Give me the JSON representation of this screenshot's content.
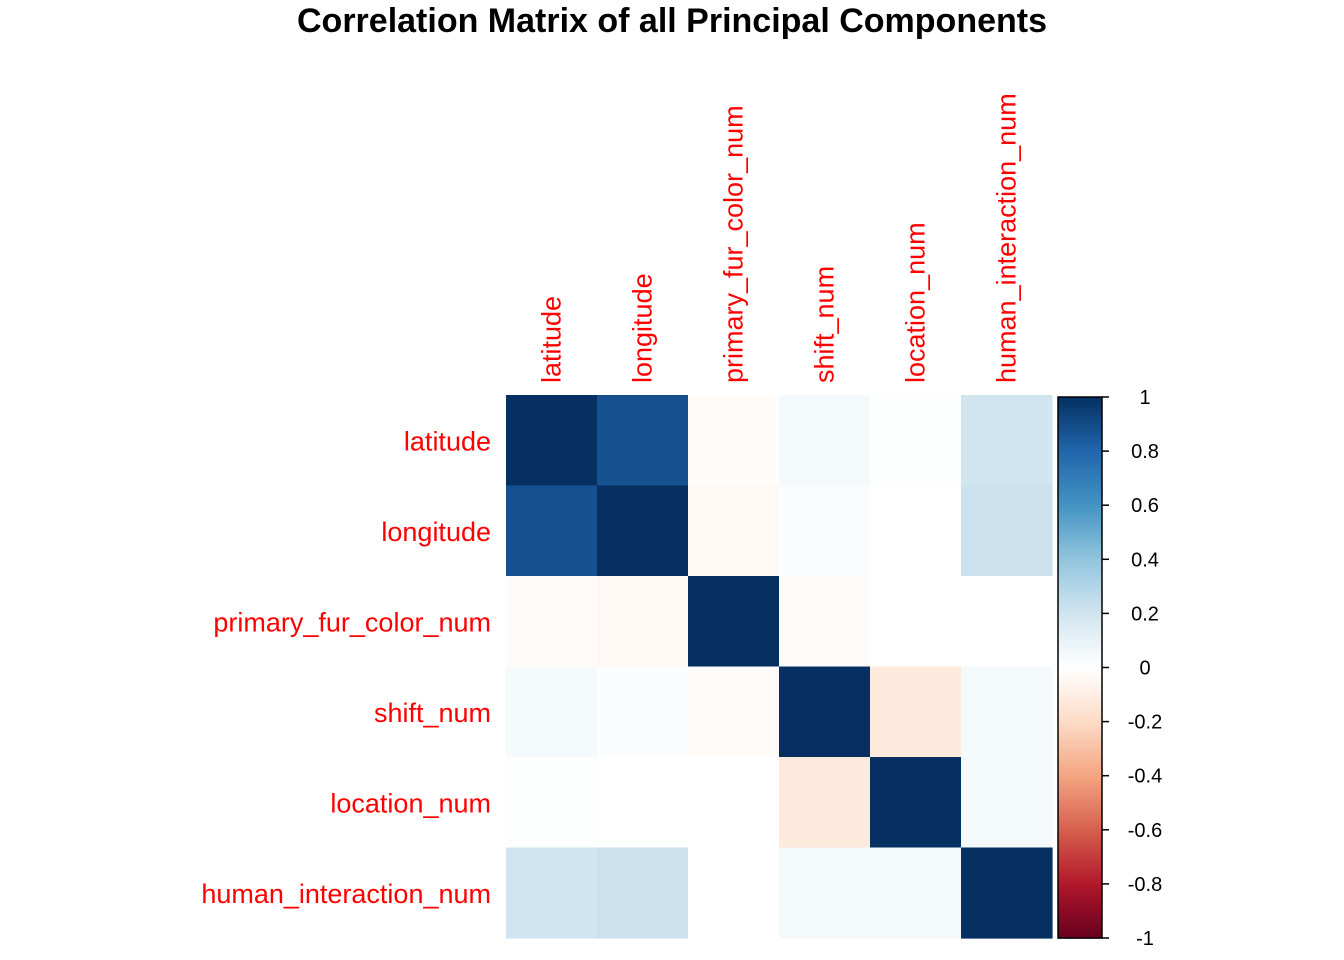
{
  "chart_data": {
    "type": "heatmap",
    "title": "Correlation Matrix of all Principal Components",
    "variables": [
      "latitude",
      "longitude",
      "primary_fur_color_num",
      "shift_num",
      "location_num",
      "human_interaction_num"
    ],
    "matrix": [
      [
        1.0,
        0.88,
        -0.02,
        0.05,
        0.01,
        0.2
      ],
      [
        0.88,
        1.0,
        -0.04,
        0.02,
        0.0,
        0.22
      ],
      [
        -0.02,
        -0.04,
        1.0,
        -0.02,
        0.0,
        0.0
      ],
      [
        0.05,
        0.02,
        -0.02,
        1.0,
        -0.12,
        0.05
      ],
      [
        0.01,
        0.0,
        0.0,
        -0.12,
        1.0,
        0.05
      ],
      [
        0.2,
        0.22,
        0.0,
        0.05,
        0.05,
        1.0
      ]
    ],
    "colorbar": {
      "range": [
        -1,
        1
      ],
      "ticks": [
        "1",
        "0.8",
        "0.6",
        "0.4",
        "0.2",
        "0",
        "-0.2",
        "-0.4",
        "-0.6",
        "-0.8",
        "-1"
      ]
    },
    "label_color": "#ff0000",
    "colors": {
      "negative_end": "#67001f",
      "positive_end": "#053061",
      "middle": "#ffffff"
    }
  }
}
